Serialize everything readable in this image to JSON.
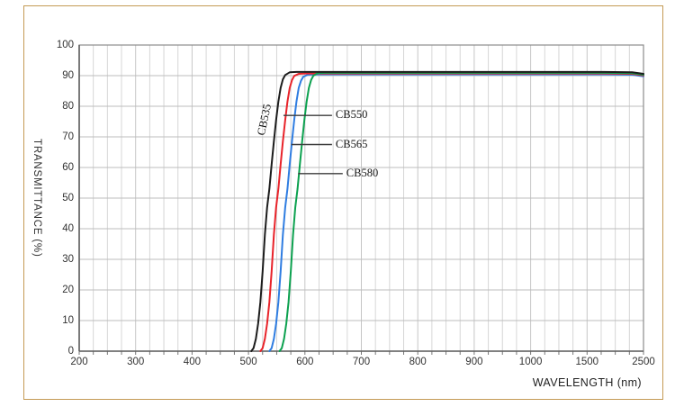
{
  "frame": {
    "border_color": "#c49a54"
  },
  "chart_data": {
    "type": "line",
    "title": "",
    "xlabel": "WAVELENGTH (nm)",
    "ylabel": "TRANSMITTANCE  (%)",
    "x_ticks": [
      200,
      300,
      400,
      500,
      600,
      700,
      800,
      900,
      1000,
      1500,
      2500
    ],
    "x_minor_divisions_per_major": 4,
    "y_ticks": [
      0,
      10,
      20,
      30,
      40,
      50,
      60,
      70,
      80,
      90,
      100
    ],
    "ylim": [
      0,
      100
    ],
    "grid": "on",
    "legend_position": "inline-annotations",
    "axis_note": "x axis spacing is uniform per labeled tick (non-linear above 1000 nm)",
    "colors": {
      "axis": "#5f5f5f",
      "plot_border": "#8c8c8c",
      "grid_minor_v": "#d6d6d6",
      "grid_major_v": "#c6c6c6",
      "grid_h": "#bdbdbd",
      "tick": "#777777",
      "leader_line": "#3c3c3c"
    },
    "series": [
      {
        "name": "CB565",
        "color": "#2f7de1",
        "points": [
          [
            537,
            0
          ],
          [
            541,
            1
          ],
          [
            545,
            4
          ],
          [
            549,
            9
          ],
          [
            553,
            16
          ],
          [
            557,
            26
          ],
          [
            561,
            38
          ],
          [
            565,
            47
          ],
          [
            569,
            53
          ],
          [
            573,
            61
          ],
          [
            577,
            68.5
          ],
          [
            581,
            75.5
          ],
          [
            585,
            81.5
          ],
          [
            589,
            86
          ],
          [
            593,
            88.3
          ],
          [
            597,
            89.6
          ],
          [
            605,
            90.3
          ],
          [
            617,
            90.4
          ],
          [
            700,
            90.4
          ],
          [
            1200,
            90.4
          ],
          [
            1800,
            90.4
          ],
          [
            2300,
            90.3
          ],
          [
            2500,
            89.8
          ]
        ]
      },
      {
        "name": "CB550",
        "color": "#e8232a",
        "points": [
          [
            521,
            0
          ],
          [
            525,
            1
          ],
          [
            529,
            4
          ],
          [
            533,
            9
          ],
          [
            537,
            16
          ],
          [
            541,
            26
          ],
          [
            545,
            38
          ],
          [
            549,
            47
          ],
          [
            553,
            53
          ],
          [
            557,
            61
          ],
          [
            561,
            68.5
          ],
          [
            565,
            75.5
          ],
          [
            569,
            81.5
          ],
          [
            573,
            86
          ],
          [
            577,
            88.5
          ],
          [
            581,
            89.9
          ],
          [
            589,
            90.6
          ],
          [
            601,
            90.7
          ],
          [
            700,
            90.7
          ],
          [
            1200,
            90.7
          ],
          [
            1800,
            90.7
          ],
          [
            2300,
            90.6
          ],
          [
            2500,
            90.1
          ]
        ]
      },
      {
        "name": "CB580",
        "color": "#0ca14f",
        "points": [
          [
            555,
            0
          ],
          [
            559,
            1
          ],
          [
            563,
            4
          ],
          [
            567,
            9
          ],
          [
            571,
            16
          ],
          [
            575,
            26
          ],
          [
            579,
            38
          ],
          [
            583,
            47
          ],
          [
            587,
            53
          ],
          [
            591,
            61
          ],
          [
            595,
            68.5
          ],
          [
            599,
            75.5
          ],
          [
            603,
            81.5
          ],
          [
            607,
            86
          ],
          [
            611,
            88.6
          ],
          [
            615,
            90
          ],
          [
            623,
            90.8
          ],
          [
            635,
            90.9
          ],
          [
            700,
            90.9
          ],
          [
            1200,
            90.9
          ],
          [
            1800,
            90.9
          ],
          [
            2300,
            90.8
          ],
          [
            2500,
            90.3
          ]
        ]
      },
      {
        "name": "CB535",
        "color": "#1c1c1c",
        "points": [
          [
            505,
            0
          ],
          [
            509,
            1
          ],
          [
            513,
            4
          ],
          [
            517,
            9
          ],
          [
            521,
            16
          ],
          [
            525,
            26
          ],
          [
            529,
            38
          ],
          [
            533,
            47
          ],
          [
            537,
            53
          ],
          [
            541,
            61
          ],
          [
            545,
            68.5
          ],
          [
            549,
            75.5
          ],
          [
            553,
            81.5
          ],
          [
            557,
            86
          ],
          [
            561,
            88.8
          ],
          [
            565,
            90.2
          ],
          [
            573,
            91.1
          ],
          [
            585,
            91.2
          ],
          [
            700,
            91.2
          ],
          [
            1200,
            91.2
          ],
          [
            1800,
            91.2
          ],
          [
            2300,
            91.1
          ],
          [
            2500,
            90.6
          ]
        ]
      }
    ],
    "annotations": [
      {
        "text": "CB535",
        "type": "rotated",
        "nm": 528,
        "pct": 75.5,
        "angle_deg": -78
      },
      {
        "text": "CB550",
        "type": "leader",
        "from_nm": 562,
        "to_nm": 648,
        "pct": 77
      },
      {
        "text": "CB565",
        "type": "leader",
        "from_nm": 576,
        "to_nm": 648,
        "pct": 67.5
      },
      {
        "text": "CB580",
        "type": "leader",
        "from_nm": 588,
        "to_nm": 667,
        "pct": 58
      }
    ]
  }
}
